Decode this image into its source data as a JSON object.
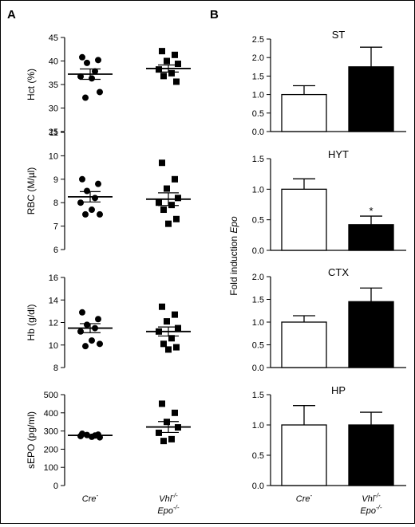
{
  "panel_labels": {
    "A": "A",
    "B": "B"
  },
  "groups": {
    "g1": {
      "name": "Cre",
      "sup": "-"
    },
    "g2": {
      "line1_name": "Vhl",
      "line1_sup": "-/-",
      "line2_name": "Epo",
      "line2_sup": "-/-"
    }
  },
  "shared_ylabel_B": {
    "prefix": "Fold induction ",
    "italic": "Epo"
  },
  "colors": {
    "control_bar": "#ffffff",
    "knockout_bar": "#000000",
    "axis": "#000000"
  },
  "chart_data": [
    {
      "type": "scatter",
      "panel": "A",
      "ylabel": "Hct (%)",
      "ylim": [
        25,
        45
      ],
      "yticks": [
        25,
        30,
        35,
        40,
        45
      ],
      "series": [
        {
          "name": "Cre-",
          "marker": "circle",
          "values": [
            40.8,
            40.2,
            39.6,
            37.8,
            36.7,
            36.3,
            33.4,
            32.2
          ],
          "mean": 37.2,
          "sem": 1.1
        },
        {
          "name": "Vhl-/- Epo-/-",
          "marker": "square",
          "values": [
            42.1,
            41.3,
            40.0,
            39.4,
            38.2,
            37.4,
            36.8,
            35.6
          ],
          "mean": 38.4,
          "sem": 0.75
        }
      ]
    },
    {
      "type": "scatter",
      "panel": "A",
      "ylabel": "RBC (M/µl)",
      "ylim": [
        6,
        11
      ],
      "yticks": [
        6,
        7,
        8,
        9,
        10,
        11
      ],
      "series": [
        {
          "name": "Cre-",
          "marker": "circle",
          "values": [
            9.0,
            8.8,
            8.5,
            8.2,
            8.0,
            7.7,
            7.5,
            7.5
          ],
          "mean": 8.25,
          "sem": 0.22
        },
        {
          "name": "Vhl-/- Epo-/-",
          "marker": "square",
          "values": [
            9.7,
            9.0,
            8.6,
            8.2,
            8.0,
            7.9,
            7.7,
            7.3,
            7.1
          ],
          "mean": 8.15,
          "sem": 0.27
        }
      ]
    },
    {
      "type": "scatter",
      "panel": "A",
      "ylabel": "Hb (g/dl)",
      "ylim": [
        8,
        16
      ],
      "yticks": [
        8,
        10,
        12,
        14,
        16
      ],
      "series": [
        {
          "name": "Cre-",
          "marker": "circle",
          "values": [
            12.9,
            12.3,
            11.8,
            11.5,
            11.2,
            10.4,
            10.1,
            9.9
          ],
          "mean": 11.5,
          "sem": 0.4
        },
        {
          "name": "Vhl-/- Epo-/-",
          "marker": "square",
          "values": [
            13.4,
            12.7,
            12.1,
            11.5,
            11.2,
            10.6,
            10.1,
            9.8,
            9.6
          ],
          "mean": 11.2,
          "sem": 0.4
        }
      ]
    },
    {
      "type": "scatter",
      "panel": "A",
      "ylabel": "sEPO (pg/ml)",
      "ylim": [
        0,
        500
      ],
      "yticks": [
        0,
        100,
        200,
        300,
        400,
        500
      ],
      "series": [
        {
          "name": "Cre-",
          "marker": "circle",
          "values": [
            285,
            280,
            278,
            275,
            272,
            268,
            265
          ],
          "mean": 276,
          "sem": 4
        },
        {
          "name": "Vhl-/- Epo-/-",
          "marker": "square",
          "values": [
            450,
            400,
            350,
            320,
            290,
            255,
            245
          ],
          "mean": 322,
          "sem": 30
        }
      ]
    },
    {
      "type": "bar",
      "panel": "B",
      "title": "ST",
      "ylim": [
        0,
        2.5
      ],
      "yticks": [
        "0.0",
        "0.5",
        "1.0",
        "1.5",
        "2.0",
        "2.5"
      ],
      "categories": [
        "Cre-",
        "Vhl-/- Epo-/-"
      ],
      "values": [
        1.0,
        1.75
      ],
      "errors": [
        0.24,
        0.53
      ],
      "significance": [
        "",
        ""
      ]
    },
    {
      "type": "bar",
      "panel": "B",
      "title": "HYT",
      "ylim": [
        0,
        1.5
      ],
      "yticks": [
        "0.0",
        "0.5",
        "1.0",
        "1.5"
      ],
      "categories": [
        "Cre-",
        "Vhl-/- Epo-/-"
      ],
      "values": [
        1.0,
        0.42
      ],
      "errors": [
        0.17,
        0.14
      ],
      "significance": [
        "",
        "*"
      ]
    },
    {
      "type": "bar",
      "panel": "B",
      "title": "CTX",
      "ylim": [
        0,
        2.0
      ],
      "yticks": [
        "0.0",
        "0.5",
        "1.0",
        "1.5",
        "2.0"
      ],
      "categories": [
        "Cre-",
        "Vhl-/- Epo-/-"
      ],
      "values": [
        1.0,
        1.45
      ],
      "errors": [
        0.14,
        0.3
      ],
      "significance": [
        "",
        ""
      ]
    },
    {
      "type": "bar",
      "panel": "B",
      "title": "HP",
      "ylim": [
        0,
        1.5
      ],
      "yticks": [
        "0.0",
        "0.5",
        "1.0",
        "1.5"
      ],
      "categories": [
        "Cre-",
        "Vhl-/- Epo-/-"
      ],
      "values": [
        1.0,
        1.0
      ],
      "errors": [
        0.32,
        0.21
      ],
      "significance": [
        "",
        ""
      ]
    }
  ]
}
